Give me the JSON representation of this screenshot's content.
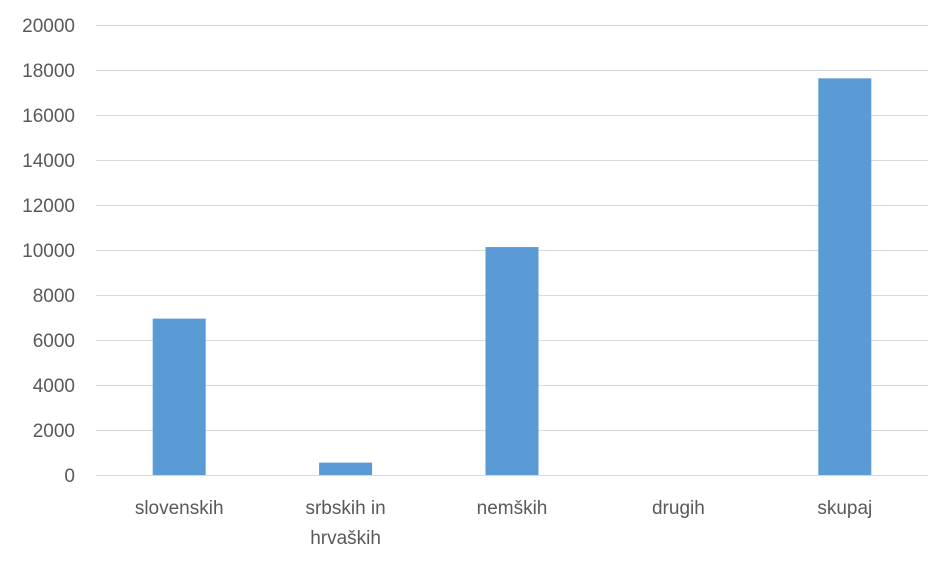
{
  "chart_data": {
    "type": "bar",
    "categories": [
      "slovenskih",
      "srbskih in hrvaških",
      "nemških",
      "drugih",
      "skupaj"
    ],
    "category_lines": [
      [
        "slovenskih"
      ],
      [
        "srbskih in",
        "hrvaških"
      ],
      [
        "nemških"
      ],
      [
        "drugih"
      ],
      [
        "skupaj"
      ]
    ],
    "values": [
      6950,
      550,
      10130,
      0,
      17630
    ],
    "ylim": [
      0,
      20000
    ],
    "yticks": [
      0,
      2000,
      4000,
      6000,
      8000,
      10000,
      12000,
      14000,
      16000,
      18000,
      20000
    ],
    "grid": true,
    "legend": "none",
    "bar_color": "#5b9bd5"
  }
}
